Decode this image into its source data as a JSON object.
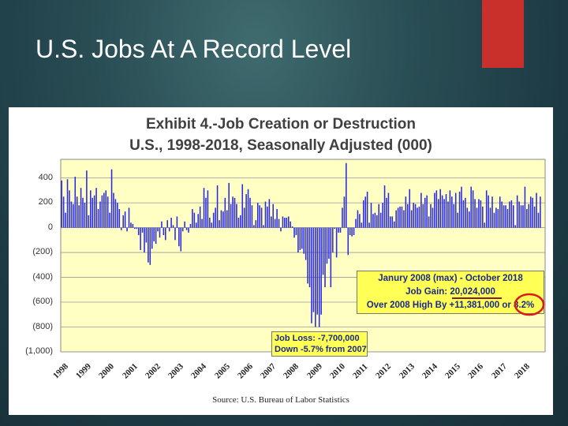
{
  "slide": {
    "title": "U.S. Jobs At A Record Level"
  },
  "colors": {
    "background": "#1f3f48",
    "accent": "#c9302c",
    "plot_bg": "#ffffc4",
    "bar": "#2a2adf",
    "annotation_bg": "#ffff55",
    "annotation_text": "#1a2a8a",
    "highlight_circle": "#d81c1c",
    "underline": "#8b1a1a"
  },
  "annotations": {
    "record": {
      "line1": "Janury 2008 (max) - October 2018",
      "line2": "Job Gain: 20,024,000",
      "line3": "Over 2008 High By +11,381,000 or 8.2%"
    },
    "loss": {
      "line1": "Job Loss: -7,700,000",
      "line2": "Down -5.7% from 2007"
    }
  },
  "chart_data": {
    "type": "bar",
    "title": "Exhibit 4.-Job Creation or Destruction",
    "subtitle": "U.S., 1998-2018, Seasonally Adjusted (000)",
    "source": "Source: U.S. Bureau of Labor Statistics",
    "ylim": [
      -1000,
      550
    ],
    "yticks": [
      "400",
      "200",
      "0",
      "(200)",
      "(400)",
      "(600)",
      "(800)",
      "(1,000)"
    ],
    "ytick_values": [
      400,
      200,
      0,
      -200,
      -400,
      -600,
      -800,
      -1000
    ],
    "xticks": [
      "1998",
      "1999",
      "2000",
      "2001",
      "2002",
      "2003",
      "2004",
      "2005",
      "2006",
      "2007",
      "2008",
      "2009",
      "2010",
      "2011",
      "2012",
      "2013",
      "2014",
      "2015",
      "2016",
      "2017",
      "2018"
    ],
    "grid": true,
    "annual_values": [
      [
        380,
        250,
        120,
        390,
        300,
        210,
        190,
        410,
        250,
        180,
        320,
        240
      ],
      [
        200,
        460,
        100,
        300,
        240,
        260,
        320,
        150,
        210,
        260,
        280,
        300
      ],
      [
        250,
        120,
        470,
        280,
        230,
        200,
        150,
        -20,
        100,
        130,
        -30,
        160
      ],
      [
        40,
        30,
        -10,
        -10,
        -60,
        -180,
        -40,
        -200,
        -120,
        -280,
        -300,
        -170
      ],
      [
        -110,
        -130,
        -30,
        -80,
        50,
        -60,
        -100,
        60,
        -30,
        80,
        20,
        -100
      ],
      [
        90,
        -150,
        -190,
        -30,
        50,
        -20,
        -40,
        30,
        150,
        120,
        40,
        110
      ],
      [
        170,
        70,
        320,
        240,
        300,
        80,
        40,
        120,
        160,
        340,
        60,
        140
      ],
      [
        130,
        240,
        140,
        360,
        190,
        250,
        240,
        190,
        80,
        100,
        350,
        160
      ],
      [
        270,
        310,
        240,
        180,
        20,
        60,
        200,
        180,
        160,
        20,
        210,
        170
      ],
      [
        230,
        90,
        190,
        70,
        150,
        70,
        -30,
        90,
        80,
        80,
        90,
        50
      ],
      [
        10,
        -80,
        -60,
        -200,
        -180,
        -170,
        -210,
        -260,
        -450,
        -480,
        -770,
        -680
      ],
      [
        -800,
        -700,
        -800,
        -700,
        -380,
        -480,
        -290,
        -250,
        -480,
        -200,
        -10,
        -240
      ],
      [
        -40,
        -40,
        160,
        250,
        520,
        -220,
        -60,
        -70,
        -60,
        70,
        140,
        110
      ],
      [
        40,
        220,
        250,
        290,
        40,
        200,
        110,
        120,
        100,
        190,
        120,
        200
      ],
      [
        340,
        240,
        280,
        90,
        90,
        50,
        140,
        160,
        170,
        170,
        140,
        250
      ],
      [
        190,
        310,
        140,
        200,
        190,
        160,
        170,
        280,
        190,
        240,
        260,
        90
      ],
      [
        190,
        160,
        280,
        300,
        230,
        310,
        260,
        230,
        270,
        210,
        300,
        250
      ],
      [
        190,
        280,
        120,
        290,
        330,
        220,
        240,
        160,
        130,
        330,
        300,
        230
      ],
      [
        160,
        230,
        220,
        170,
        40,
        300,
        260,
        160,
        250,
        120,
        160,
        150
      ],
      [
        250,
        210,
        180,
        180,
        150,
        210,
        220,
        180,
        20,
        260,
        210,
        180
      ],
      [
        180,
        330,
        150,
        190,
        250,
        240,
        170,
        280,
        120,
        250
      ]
    ]
  }
}
